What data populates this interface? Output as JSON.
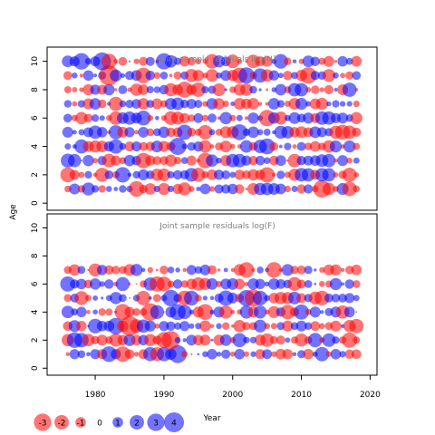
{
  "chart_data": [
    {
      "type": "scatter",
      "title": "Joint sample residuals log(N)",
      "xlim": [
        1973,
        2021
      ],
      "ylim": [
        -0.5,
        11
      ],
      "x_ticks": [
        1980,
        1990,
        2000,
        2010,
        2020
      ],
      "y_ticks": [
        0,
        2,
        4,
        6,
        8,
        10
      ],
      "years": [
        1976,
        2018
      ],
      "ages": [
        1,
        10
      ],
      "marker": "bubble sized by |residual|, red = negative, blue = positive",
      "colors": {
        "negative": "#ff0000",
        "positive": "#0000ff"
      }
    },
    {
      "type": "scatter",
      "title": "Joint sample residuals log(F)",
      "xlim": [
        1973,
        2021
      ],
      "ylim": [
        -0.5,
        11
      ],
      "x_ticks": [
        1980,
        1990,
        2000,
        2010,
        2020
      ],
      "y_ticks": [
        0,
        2,
        4,
        6,
        8,
        10
      ],
      "years": [
        1976,
        2018
      ],
      "ages": [
        1,
        7
      ],
      "marker": "bubble sized by |residual|, red = negative, blue = positive",
      "colors": {
        "negative": "#ff0000",
        "positive": "#0000ff"
      }
    }
  ],
  "axis": {
    "xlabel": "Year",
    "ylabel": "Age"
  },
  "legend": {
    "items": [
      {
        "label": "-3",
        "value": -3
      },
      {
        "label": "-2",
        "value": -2
      },
      {
        "label": "-1",
        "value": -1
      },
      {
        "label": "0",
        "value": 0
      },
      {
        "label": "1",
        "value": 1
      },
      {
        "label": "2",
        "value": 2
      },
      {
        "label": "3",
        "value": 3
      },
      {
        "label": "4",
        "value": 4
      }
    ]
  }
}
